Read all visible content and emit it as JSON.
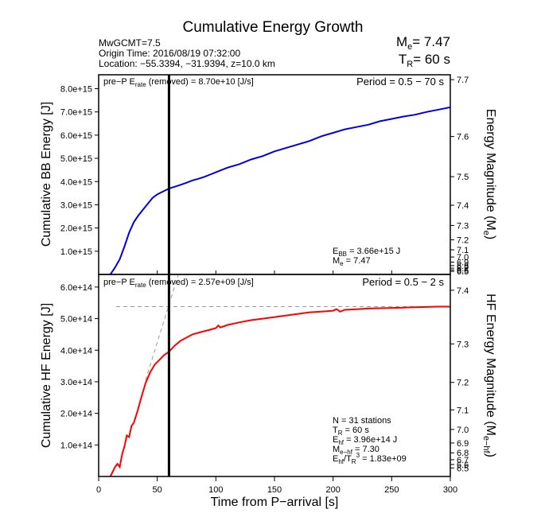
{
  "header": {
    "title": "Cumulative Energy Growth",
    "info_lines": [
      "MwGCMT=7.5",
      "Origin Time: 2016/08/19 07:32:00",
      "Location: −55.3394, −31.9394, z=10.0 km"
    ],
    "me": {
      "symbol": "M",
      "subscript": "e",
      "value": "= 7.47"
    },
    "tr": {
      "symbol": "T",
      "subscript": "R",
      "value": "= 60 s"
    }
  },
  "x_axis": {
    "label": "Time from P−arrival [s]",
    "range": [
      0,
      300
    ],
    "ticks": [
      0,
      50,
      100,
      150,
      200,
      250,
      300
    ],
    "tick_labels": [
      "0",
      "50",
      "100",
      "150",
      "200",
      "250",
      "300"
    ]
  },
  "chart_data": [
    {
      "type": "line",
      "panel": "top",
      "ylabel": "Cumulative BB Energy [J]",
      "y2label": "Energy Magnitude (M",
      "y2label_sub": "e",
      "ylim": [
        0,
        8600000000000000.0
      ],
      "yticks": [
        1000000000000000.0,
        2000000000000000.0,
        3000000000000000.0,
        4000000000000000.0,
        5000000000000000.0,
        6000000000000000.0,
        7000000000000000.0,
        8000000000000000.0
      ],
      "ytick_labels": [
        "1.0e+15",
        "2.0e+15",
        "3.0e+15",
        "4.0e+15",
        "5.0e+15",
        "6.0e+15",
        "7.0e+15",
        "8.0e+15"
      ],
      "y2ticks": [
        7.7,
        7.6,
        7.5,
        7.4,
        7.3,
        7.2,
        7.1,
        7.0,
        6.9,
        6.8,
        6.7,
        6.6,
        6.5
      ],
      "y2tick_energy": [
        8390000000000000.0,
        5940000000000000.0,
        4210000000000000.0,
        2980000000000000.0,
        2110000000000000.0,
        1490000000000000.0,
        1060000000000000.0,
        750000000000000.0,
        530000000000000.0,
        380000000000000.0,
        270000000000000.0,
        190000000000000.0,
        130000000000000.0
      ],
      "y2tick_labels": [
        "7.7",
        "7.6",
        "7.5",
        "7.4",
        "7.3",
        "7.2",
        "7.1",
        "7.0",
        "6.9",
        "6.8",
        "6.7",
        "6.6",
        "6.5"
      ],
      "color": "#0000dd",
      "x": [
        10,
        14,
        18,
        22,
        26,
        30,
        34,
        38,
        42,
        46,
        50,
        54,
        58,
        60,
        65,
        70,
        75,
        80,
        85,
        90,
        95,
        100,
        110,
        120,
        130,
        140,
        150,
        160,
        170,
        180,
        190,
        200,
        210,
        220,
        230,
        240,
        250,
        260,
        270,
        280,
        290,
        300
      ],
      "y": [
        0,
        300000000000000.0,
        650000000000000.0,
        1200000000000000.0,
        1800000000000000.0,
        2250000000000000.0,
        2550000000000000.0,
        2800000000000000.0,
        3050000000000000.0,
        3300000000000000.0,
        3450000000000000.0,
        3550000000000000.0,
        3650000000000000.0,
        3700000000000000.0,
        3780000000000000.0,
        3860000000000000.0,
        3950000000000000.0,
        4050000000000000.0,
        4120000000000000.0,
        4200000000000000.0,
        4300000000000000.0,
        4400000000000000.0,
        4600000000000000.0,
        4750000000000000.0,
        4950000000000000.0,
        5100000000000000.0,
        5300000000000000.0,
        5450000000000000.0,
        5600000000000000.0,
        5750000000000000.0,
        5950000000000000.0,
        6100000000000000.0,
        6250000000000000.0,
        6350000000000000.0,
        6450000000000000.0,
        6600000000000000.0,
        6700000000000000.0,
        6800000000000000.0,
        6880000000000000.0,
        7000000000000000.0,
        7100000000000000.0,
        7200000000000000.0
      ],
      "vline_x": 60,
      "annot_left": {
        "pre": "pre−P E",
        "sub": "rate",
        "post": " (removed) = 8.70e+10 [J/s]"
      },
      "annot_right": "Period = 0.5 − 70 s",
      "stats": [
        {
          "main": "E",
          "sub": "BB",
          "rest": " = 3.66e+15 J"
        },
        {
          "main": "M",
          "sub": "e",
          "rest": " = 7.47"
        }
      ]
    },
    {
      "type": "line",
      "panel": "bottom",
      "ylabel": "Cumulative HF Energy [J]",
      "y2label": "HF Energy Magnitude (M",
      "y2label_sub": "e−hf",
      "ylim": [
        0,
        640000000000000.0
      ],
      "yticks": [
        100000000000000.0,
        200000000000000.0,
        300000000000000.0,
        400000000000000.0,
        500000000000000.0,
        600000000000000.0
      ],
      "ytick_labels": [
        "1.0e+14",
        "2.0e+14",
        "3.0e+14",
        "4.0e+14",
        "5.0e+14",
        "6.0e+14"
      ],
      "y2ticks": [
        7.4,
        7.3,
        7.2,
        7.1,
        7.0,
        6.9,
        6.8,
        6.7,
        6.6,
        6.5
      ],
      "y2tick_energy": [
        590000000000000.0,
        420000000000000.0,
        298000000000000.0,
        211000000000000.0,
        149000000000000.0,
        106000000000000.0,
        75000000000000.0,
        53000000000000.0,
        38000000000000.0,
        27000000000000.0
      ],
      "y2tick_labels": [
        "7.4",
        "7.3",
        "7.2",
        "7.1",
        "7.0",
        "6.9",
        "6.8",
        "6.7",
        "6.6",
        "6.5"
      ],
      "color": "#ff0000",
      "x": [
        10,
        12,
        14,
        16,
        18,
        20,
        22,
        24,
        26,
        28,
        30,
        33,
        36,
        40,
        44,
        48,
        52,
        56,
        60,
        65,
        70,
        75,
        80,
        85,
        90,
        95,
        100,
        102,
        104,
        110,
        120,
        130,
        140,
        150,
        160,
        170,
        180,
        190,
        200,
        203,
        206,
        210,
        220,
        230,
        240,
        250,
        260,
        270,
        280,
        290,
        300
      ],
      "y": [
        0,
        15000000000000.0,
        30000000000000.0,
        40000000000000.0,
        30000000000000.0,
        70000000000000.0,
        95000000000000.0,
        130000000000000.0,
        125000000000000.0,
        160000000000000.0,
        170000000000000.0,
        205000000000000.0,
        245000000000000.0,
        295000000000000.0,
        330000000000000.0,
        355000000000000.0,
        370000000000000.0,
        385000000000000.0,
        395000000000000.0,
        415000000000000.0,
        430000000000000.0,
        440000000000000.0,
        450000000000000.0,
        455000000000000.0,
        460000000000000.0,
        465000000000000.0,
        470000000000000.0,
        478000000000000.0,
        472000000000000.0,
        480000000000000.0,
        488000000000000.0,
        495000000000000.0,
        500000000000000.0,
        505000000000000.0,
        510000000000000.0,
        515000000000000.0,
        520000000000000.0,
        522000000000000.0,
        525000000000000.0,
        530000000000000.0,
        522000000000000.0,
        528000000000000.0,
        530000000000000.0,
        532000000000000.0,
        533000000000000.0,
        534000000000000.0,
        535000000000000.0,
        536000000000000.0,
        537000000000000.0,
        538000000000000.0,
        538000000000000.0
      ],
      "vline_x": 60,
      "hline_y": 538000000000000.0,
      "slope_line": {
        "x": [
          40,
          68
        ],
        "y": [
          305000000000000.0,
          640000000000000.0
        ]
      },
      "annot_left": {
        "pre": "pre−P E",
        "sub": "rate",
        "post": " (removed) = 2.57e+09 [J/s]"
      },
      "annot_right": "Period = 0.5 − 2 s",
      "stats": [
        {
          "main": "N = 31 stations",
          "sub": "",
          "rest": ""
        },
        {
          "main": "T",
          "sub": "R",
          "rest": " = 60  s"
        },
        {
          "main": "E",
          "sub": "hf",
          "rest": " = 3.96e+14 J"
        },
        {
          "main": "M",
          "sub": "e−hf",
          "rest": " = 7.30"
        },
        {
          "main": "E",
          "sub": "hf",
          "rest": "/T",
          "sub2": "R",
          "sup": "3",
          "rest2": " =  1.83e+09"
        }
      ]
    }
  ]
}
